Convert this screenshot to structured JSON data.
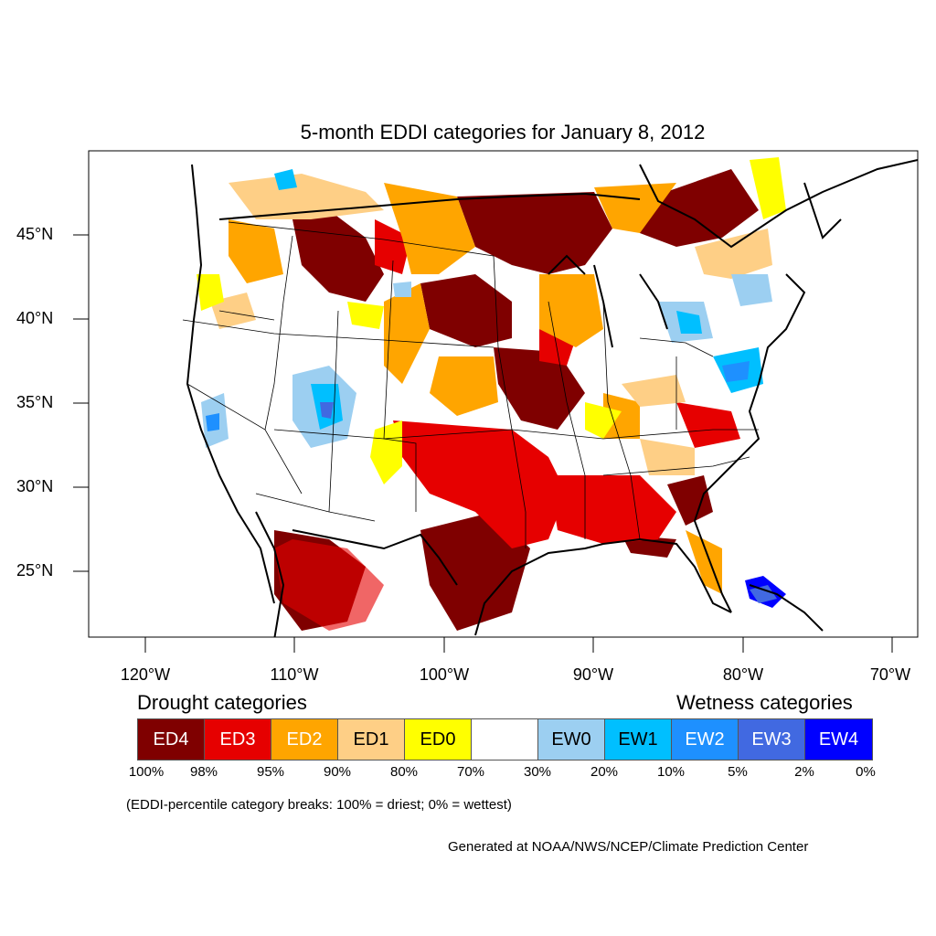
{
  "title": "5-month EDDI categories for January 8, 2012",
  "lat_labels": [
    "45°N",
    "40°N",
    "35°N",
    "30°N",
    "25°N"
  ],
  "lon_labels": [
    "120°W",
    "110°W",
    "100°W",
    "90°W",
    "80°W",
    "70°W"
  ],
  "legend": {
    "drought_heading": "Drought categories",
    "wetness_heading": "Wetness categories",
    "categories": [
      {
        "label": "ED4",
        "color": "#7f0000",
        "text_color": "#ffffff"
      },
      {
        "label": "ED3",
        "color": "#e60000",
        "text_color": "#ffffff"
      },
      {
        "label": "ED2",
        "color": "#ffa500",
        "text_color": "#ffffff"
      },
      {
        "label": "ED1",
        "color": "#fecf86",
        "text_color": "#000000"
      },
      {
        "label": "ED0",
        "color": "#ffff00",
        "text_color": "#000000"
      },
      {
        "label": "",
        "color": "#ffffff",
        "text_color": "#000000"
      },
      {
        "label": "EW0",
        "color": "#9ccff1",
        "text_color": "#000000"
      },
      {
        "label": "EW1",
        "color": "#00bfff",
        "text_color": "#000000"
      },
      {
        "label": "EW2",
        "color": "#1e90ff",
        "text_color": "#ffffff"
      },
      {
        "label": "EW3",
        "color": "#4169e1",
        "text_color": "#ffffff"
      },
      {
        "label": "EW4",
        "color": "#0000ff",
        "text_color": "#ffffff"
      }
    ],
    "percentiles": [
      "100%",
      "98%",
      "95%",
      "90%",
      "80%",
      "70%",
      "30%",
      "20%",
      "10%",
      "5%",
      "2%",
      "0%"
    ]
  },
  "note": "(EDDI-percentile category breaks: 100% = driest; 0% = wettest)",
  "credit": "Generated at NOAA/NWS/NCEP/Climate Prediction Center"
}
